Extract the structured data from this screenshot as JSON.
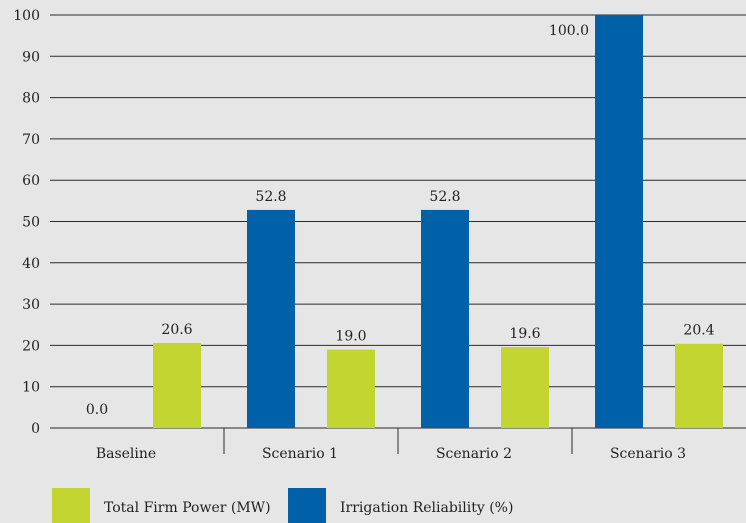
{
  "chart_data": {
    "type": "bar",
    "categories": [
      "Baseline",
      "Scenario 1",
      "Scenario 2",
      "Scenario 3"
    ],
    "series": [
      {
        "name": "Irrigation Reliability (%)",
        "values": [
          0.0,
          52.8,
          52.8,
          100.0
        ],
        "labels": [
          "0.0",
          "52.8",
          "52.8",
          "100.0"
        ],
        "color": "#0060a8"
      },
      {
        "name": "Total Firm Power (MW)",
        "values": [
          20.6,
          19.0,
          19.6,
          20.4
        ],
        "labels": [
          "20.6",
          "19.0",
          "19.6",
          "20.4"
        ],
        "color": "#c3d530"
      }
    ],
    "legend_order": [
      1,
      0
    ],
    "yticks": [
      "0",
      "10",
      "20",
      "30",
      "40",
      "50",
      "60",
      "70",
      "80",
      "90",
      "100"
    ],
    "ylim": [
      0,
      100
    ],
    "grid": true,
    "legend_position": "bottom-left",
    "title": "",
    "xlabel": "",
    "ylabel": ""
  }
}
